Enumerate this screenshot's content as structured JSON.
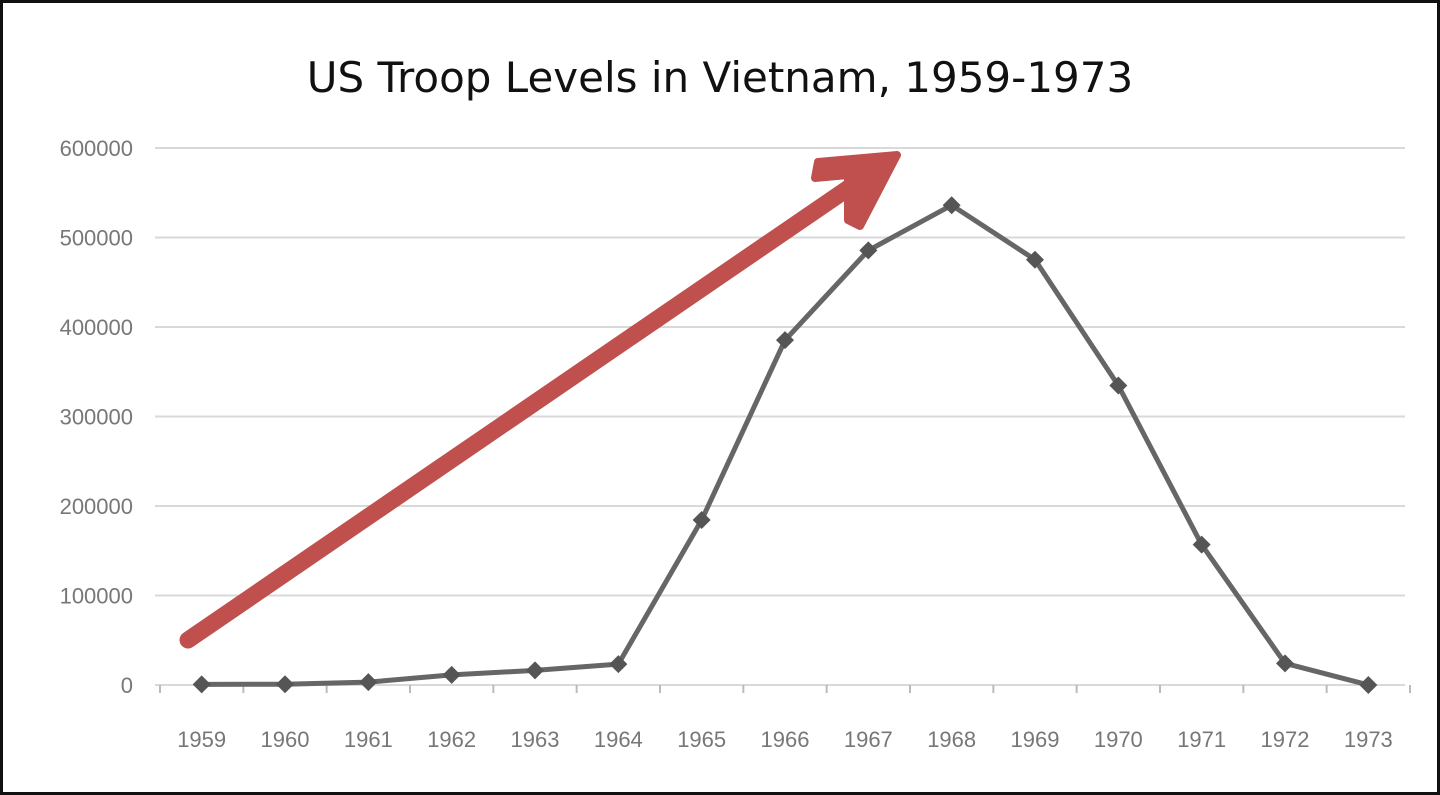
{
  "chart_data": {
    "type": "line",
    "title": "US Troop Levels in Vietnam, 1959-1973",
    "xlabel": "",
    "ylabel": "",
    "categories": [
      "1959",
      "1960",
      "1961",
      "1962",
      "1963",
      "1964",
      "1965",
      "1966",
      "1967",
      "1968",
      "1969",
      "1970",
      "1971",
      "1972",
      "1973"
    ],
    "series": [
      {
        "values": [
          760,
          900,
          3200,
          11300,
          16300,
          23300,
          184300,
          385300,
          485600,
          536100,
          475200,
          334600,
          156800,
          24200,
          50
        ]
      }
    ],
    "ylim": [
      0,
      600000
    ],
    "yticks": [
      "0",
      "100000",
      "200000",
      "300000",
      "400000",
      "500000",
      "600000"
    ],
    "grid": true,
    "legend": "none",
    "colors": {
      "line": "#666666",
      "grid": "#d9d9d9",
      "arrow": "#c0504d"
    },
    "annotations": [
      {
        "type": "arrow",
        "direction": "up-right",
        "color": "#c0504d"
      }
    ]
  }
}
